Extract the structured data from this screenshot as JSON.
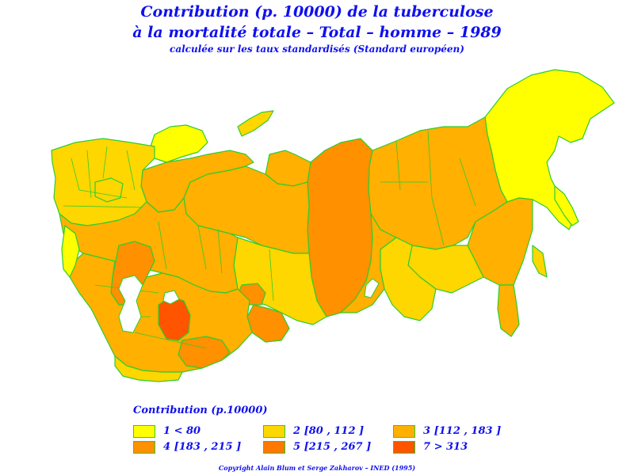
{
  "title_line1": "Contribution (p. 10000) de la tuberculose",
  "title_line2": "à la mortalité totale – Total – homme – 1989",
  "subtitle": "calculée sur les taux standardisés (Standard européen)",
  "legend": {
    "title": "Contribution (p.10000)",
    "items": [
      {
        "label": "1  <  80",
        "color": "#ffff00"
      },
      {
        "label": "2  [80 ,  112 ]",
        "color": "#ffd700"
      },
      {
        "label": "3  [112 ,  183 ]",
        "color": "#ffb000"
      },
      {
        "label": "4  [183 ,  215 ]",
        "color": "#ff9000"
      },
      {
        "label": "5  [215 ,  267 ]",
        "color": "#ff7800"
      },
      {
        "label": "7  >  313",
        "color": "#ff5500"
      }
    ]
  },
  "copyright": "Copyright Alain Blum et Serge Zakharov – INED (1995)",
  "colors": {
    "border": "#2ecc2e",
    "text": "#1010ee"
  }
}
